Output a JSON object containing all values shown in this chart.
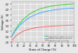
{
  "title": "",
  "xlabel": "State of Charge (%)",
  "ylabel": "Voltage (V)",
  "xlim": [
    0,
    100
  ],
  "ylim": [
    2.8,
    4.3
  ],
  "yticks": [
    2.8,
    3.0,
    3.2,
    3.4,
    3.6,
    3.8,
    4.0,
    4.2
  ],
  "xticks": [
    0,
    10,
    20,
    30,
    40,
    50,
    60,
    70,
    80,
    90,
    100
  ],
  "grid": true,
  "background_color": "#e8e8e8",
  "plot_bg": "#dcdcdc",
  "curves": [
    {
      "label": "LiNiMnCoO2 (NMC) 3.0-4.2V",
      "color": "#44cc44",
      "chemistry": "NMC"
    },
    {
      "label": "LiNiCoAlO2 (NCA) 3.0-4.2V",
      "color": "#44aaff",
      "chemistry": "NCA"
    },
    {
      "label": "LiFePO4 (LFP) 2.5-3.65V",
      "color": "#ff6666",
      "chemistry": "LFP"
    }
  ],
  "legend_loc": "upper left",
  "linewidth": 0.7
}
